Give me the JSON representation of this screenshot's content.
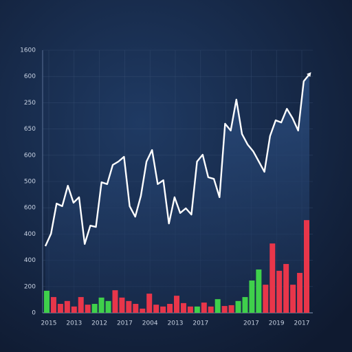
{
  "chart_data": {
    "type": "line-bar",
    "y_labels": [
      "1600",
      "600",
      "250",
      "650",
      "600",
      "500",
      "600",
      "400",
      "400",
      "200",
      "0"
    ],
    "x_labels": [
      "2015",
      "2013",
      "2012",
      "2017",
      "2004",
      "2013",
      "2017",
      null,
      "2017",
      "2019",
      "2017"
    ],
    "ylim": [
      0,
      100
    ],
    "grid": true,
    "line": {
      "color": "#ffffff",
      "values": [
        25.4,
        30.1,
        41.6,
        40.6,
        48.4,
        41.9,
        44.0,
        26.2,
        33.2,
        32.7,
        49.7,
        49.0,
        56.3,
        57.6,
        59.4,
        40.6,
        36.6,
        44.5,
        57.6,
        62.0,
        49.0,
        50.5,
        34.0,
        44.0,
        38.0,
        39.8,
        37.4,
        57.6,
        60.2,
        51.6,
        51.0,
        44.0,
        72.0,
        69.4,
        81.2,
        68.1,
        64.1,
        61.5,
        57.6,
        53.7,
        67.3,
        73.3,
        72.5,
        77.7,
        74.1,
        69.4,
        88.2,
        90.8
      ]
    },
    "bars": {
      "values": [
        8.4,
        6.0,
        3.4,
        4.5,
        2.4,
        6.0,
        3.1,
        3.4,
        5.8,
        4.5,
        8.6,
        5.8,
        4.5,
        3.4,
        1.6,
        7.3,
        3.1,
        2.4,
        3.4,
        6.5,
        3.7,
        2.4,
        2.4,
        3.9,
        2.4,
        5.2,
        2.6,
        2.9,
        4.5,
        6.0,
        12.3,
        16.5,
        10.7,
        26.4,
        16.0,
        18.6,
        10.7,
        15.2,
        35.3
      ],
      "colors": [
        "#3fd04b",
        "#e8364a",
        "#e8364a",
        "#e8364a",
        "#e8364a",
        "#e8364a",
        "#e8364a",
        "#3fd04b",
        "#3fd04b",
        "#3fd04b",
        "#e8364a",
        "#e8364a",
        "#e8364a",
        "#e8364a",
        "#e8364a",
        "#e8364a",
        "#e8364a",
        "#e8364a",
        "#e8364a",
        "#e8364a",
        "#e8364a",
        "#e8364a",
        "#3fd04b",
        "#e8364a",
        "#e8364a",
        "#3fd04b",
        "#e8364a",
        "#e8364a",
        "#3fd04b",
        "#3fd04b",
        "#3fd04b",
        "#3fd04b",
        "#e8364a",
        "#e8364a",
        "#e8364a",
        "#e8364a",
        "#e8364a",
        "#e8364a",
        "#e8364a"
      ]
    }
  }
}
